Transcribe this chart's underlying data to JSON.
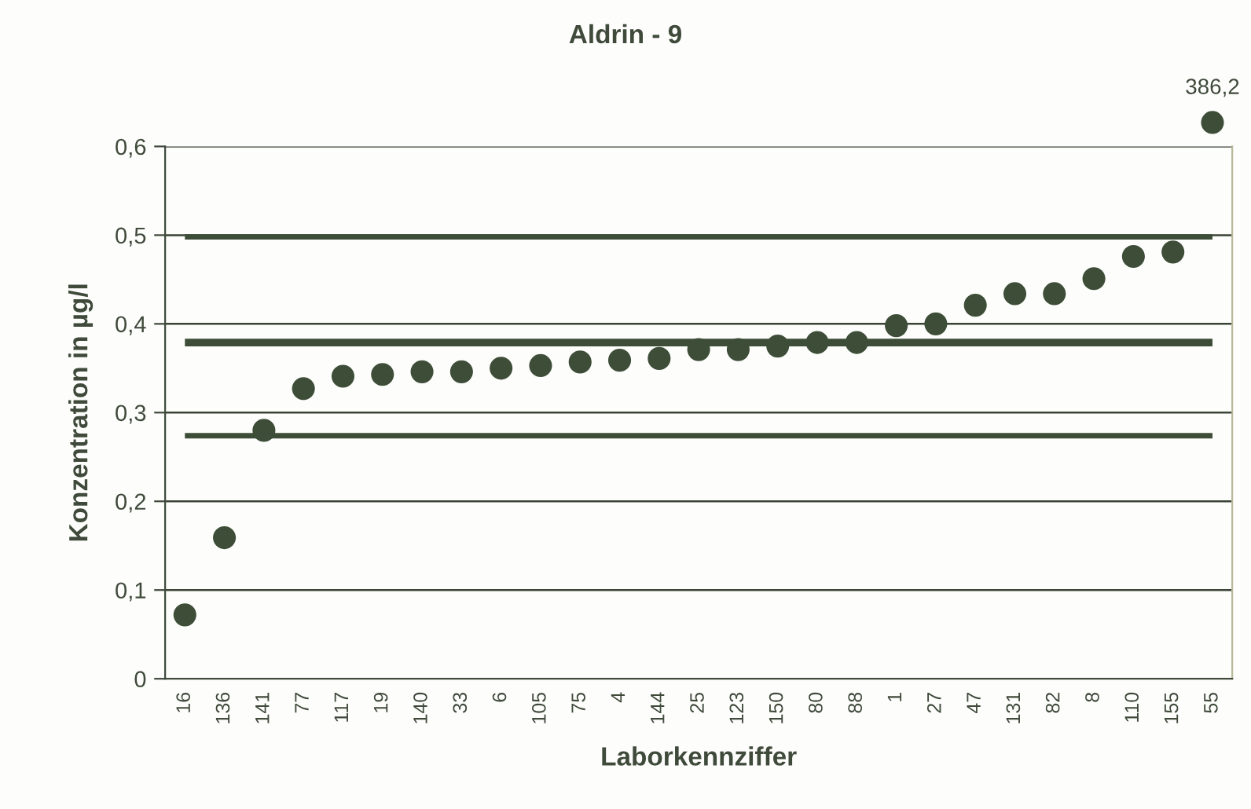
{
  "chart_data": {
    "type": "scatter",
    "title": "Aldrin - 9",
    "xlabel": "Laborkennziffer",
    "ylabel": "Konzentration in µg/l",
    "categories": [
      "16",
      "136",
      "141",
      "77",
      "117",
      "19",
      "140",
      "33",
      "6",
      "105",
      "75",
      "4",
      "144",
      "25",
      "123",
      "150",
      "80",
      "88",
      "1",
      "27",
      "47",
      "131",
      "82",
      "8",
      "110",
      "155",
      "55"
    ],
    "values": [
      0.072,
      0.159,
      0.28,
      0.327,
      0.341,
      0.343,
      0.346,
      0.346,
      0.35,
      0.353,
      0.357,
      0.359,
      0.361,
      0.371,
      0.371,
      0.375,
      0.379,
      0.379,
      0.398,
      0.4,
      0.421,
      0.434,
      0.434,
      0.451,
      0.476,
      0.481,
      null
    ],
    "annotations": [
      "386,2"
    ],
    "color": "#3d4d38",
    "marker": "circle",
    "ylim": [
      0,
      0.6
    ],
    "yticks": [
      0,
      {
        "value": 0.1,
        "label": "0,1"
      },
      {
        "value": 0.2,
        "label": "0,2"
      },
      {
        "value": 0.3,
        "label": "0,3"
      },
      {
        "value": 0.4,
        "label": "0,4"
      },
      {
        "value": 0.5,
        "label": "0,5"
      },
      {
        "value": 0.6,
        "label": "0,6"
      }
    ],
    "grid": "y",
    "legend": false,
    "ref_lines": [
      {
        "axis": "y",
        "value": 0.498,
        "color": "#3d4d38"
      },
      {
        "axis": "y",
        "value": 0.379,
        "color": "#3d4d38"
      },
      {
        "axis": "y",
        "value": 0.274,
        "color": "#3d4d38"
      }
    ]
  }
}
